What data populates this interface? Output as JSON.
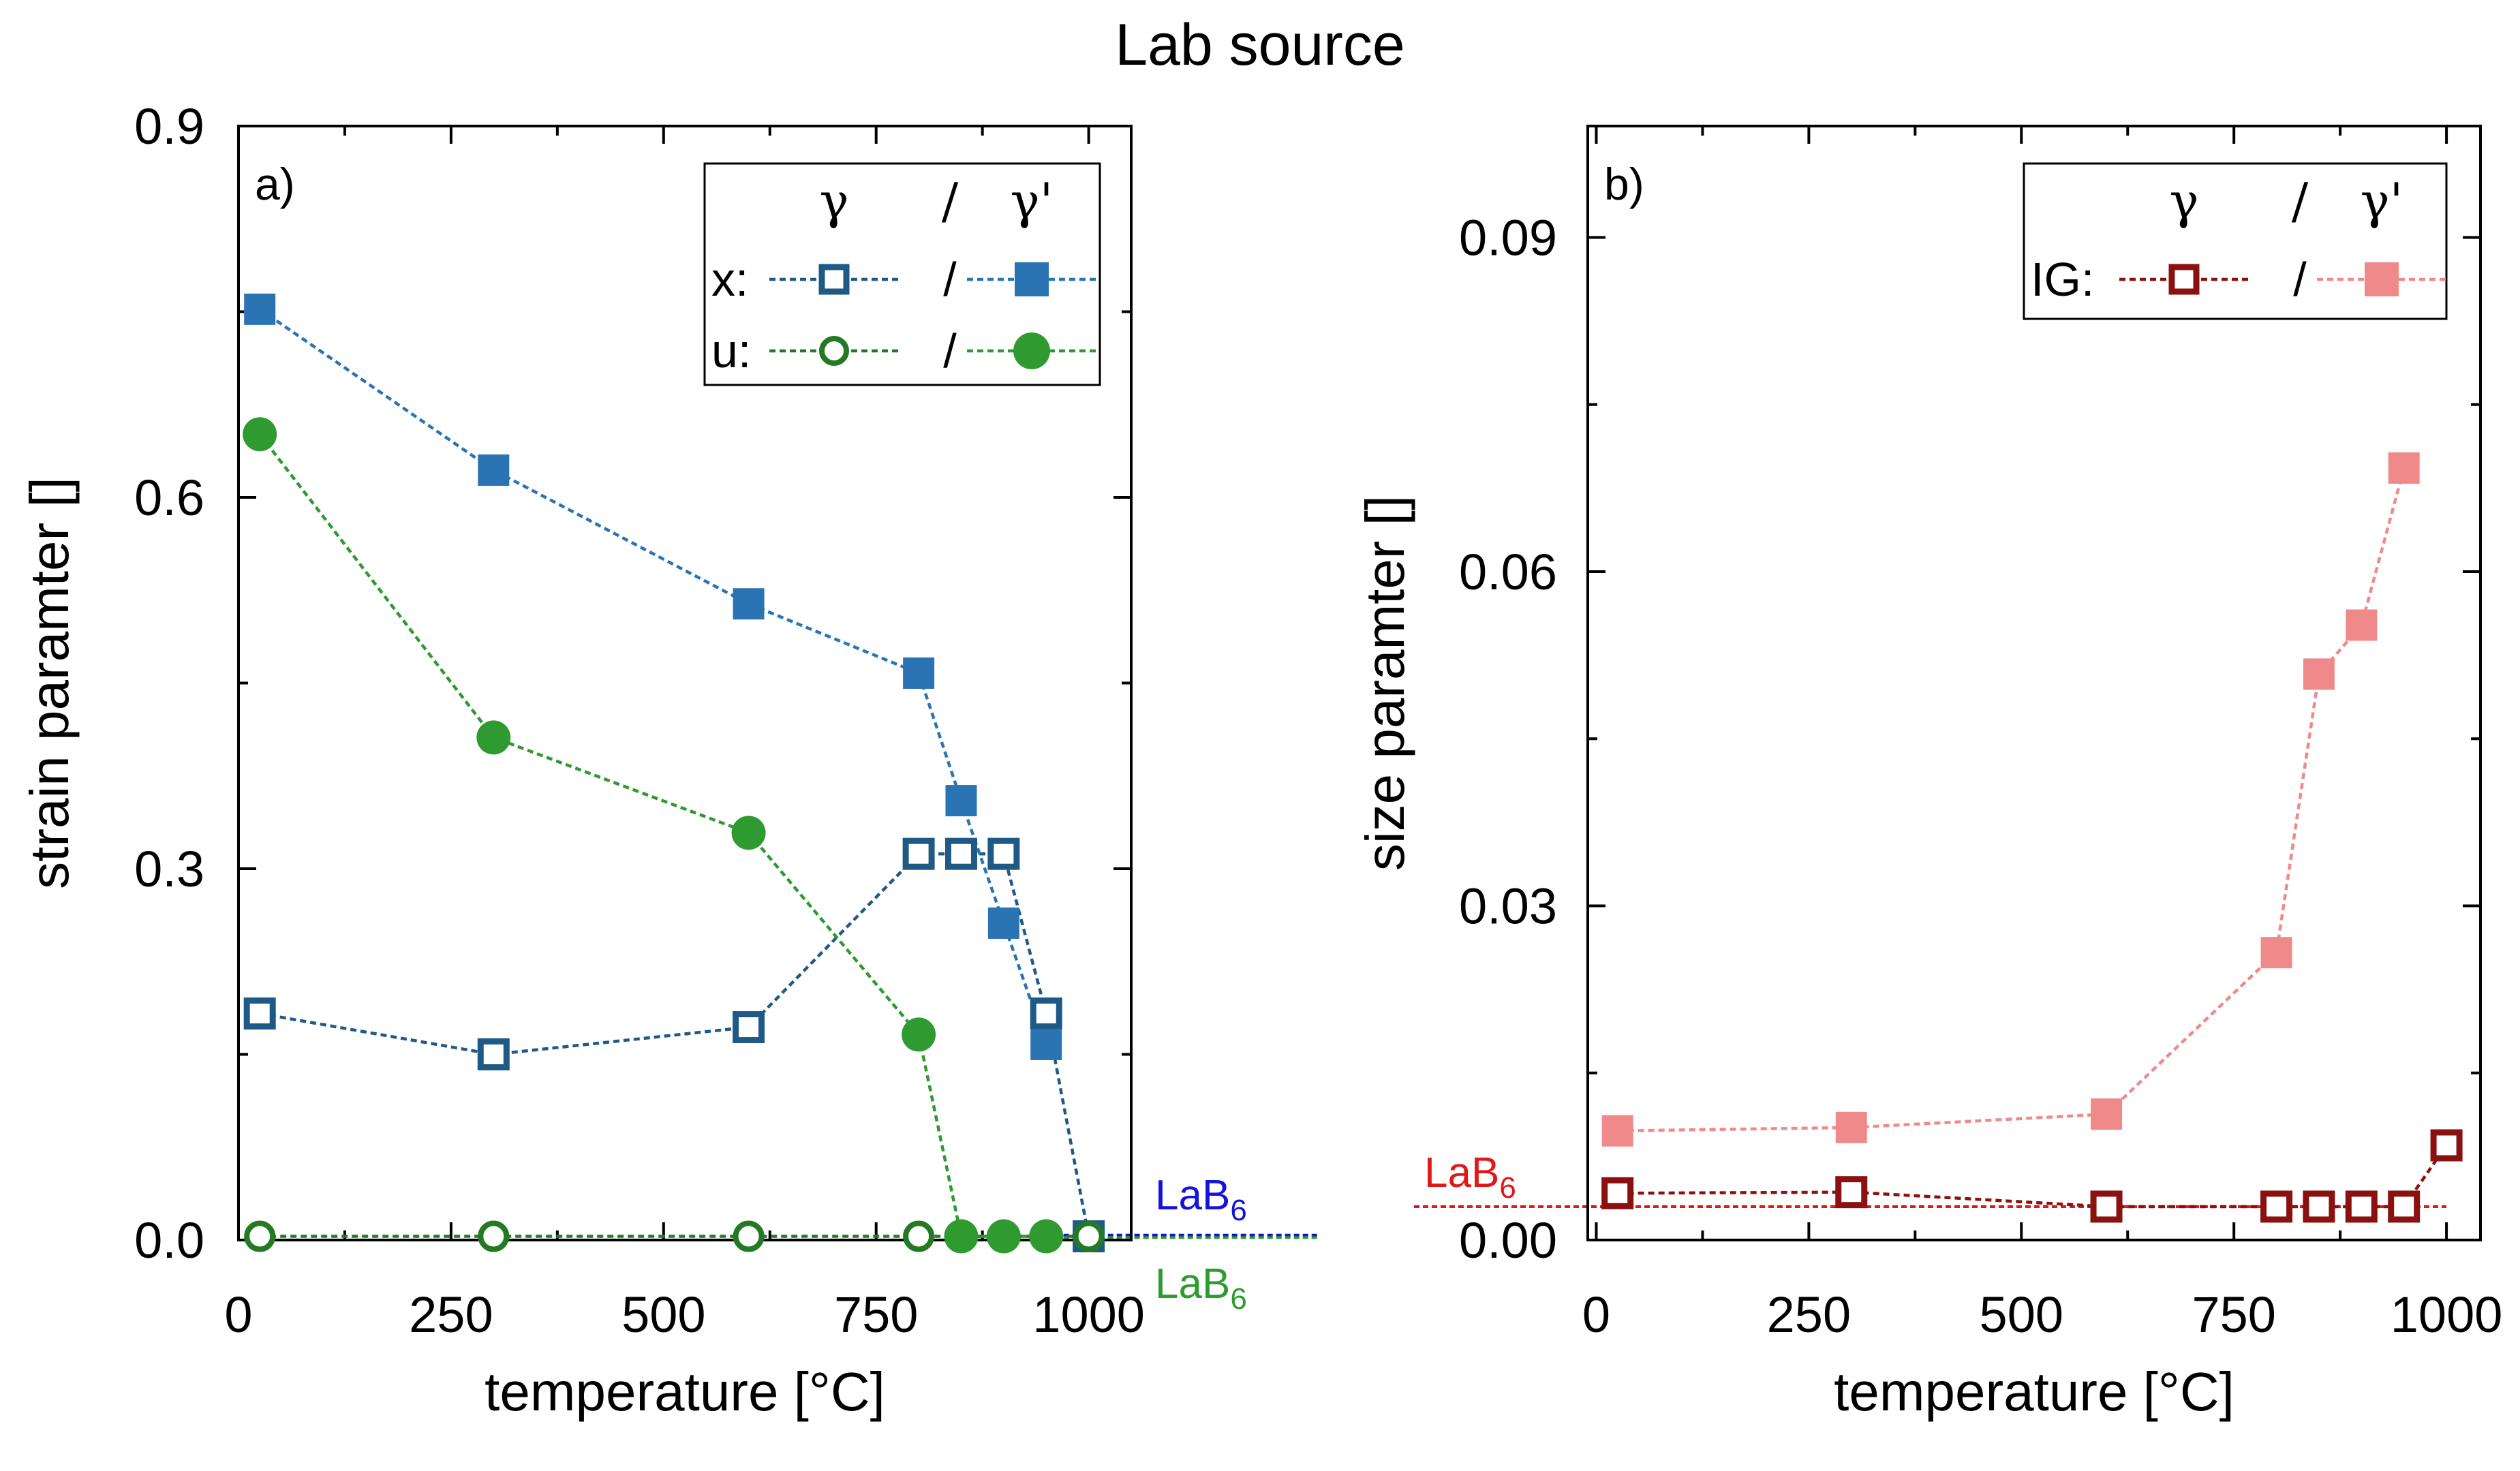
{
  "title": "Lab source",
  "colors": {
    "x_blue": "#2b74b3",
    "x_blue_dark": "#1f5a86",
    "u_green": "#2f9a2f",
    "u_green_dark": "#247a24",
    "ig_pink": "#f08a8a",
    "ig_dark": "#8b1010",
    "ref_blue": "#1414d8",
    "ref_red": "#e01818"
  },
  "chart_data": [
    {
      "panel": "a)",
      "type": "line",
      "xlabel": "temperature [°C]",
      "ylabel": "strain paramter []",
      "xlim": [
        0,
        1050
      ],
      "ylim": [
        0,
        0.9
      ],
      "xticks": [
        0,
        250,
        500,
        750,
        1000
      ],
      "xtick_labels": [
        "0",
        "250",
        "500",
        "750",
        "1000"
      ],
      "yticks": [
        0,
        0.3,
        0.6,
        0.9
      ],
      "ytick_labels": [
        "0.0",
        "0.3",
        "0.6",
        "0.9"
      ],
      "legend": {
        "position": "top-right",
        "header_gamma": "γ",
        "header_sep": "/",
        "header_gamma_prime": "γ'",
        "rows": [
          {
            "label": "x:",
            "sep": "/"
          },
          {
            "label": "u:",
            "sep": "/"
          }
        ]
      },
      "series": [
        {
          "name": "x γ",
          "marker": "square-open",
          "color": "x_blue_dark",
          "x": [
            25,
            300,
            600,
            800,
            850,
            900,
            950,
            1000
          ],
          "y": [
            0.183,
            0.15,
            0.172,
            0.312,
            0.312,
            0.312,
            0.183,
            0.003
          ]
        },
        {
          "name": "x γ'",
          "marker": "square-filled",
          "color": "x_blue",
          "x": [
            25,
            300,
            600,
            800,
            850,
            900,
            950
          ],
          "y": [
            0.752,
            0.622,
            0.514,
            0.458,
            0.355,
            0.256,
            0.158
          ]
        },
        {
          "name": "u γ",
          "marker": "circle-open",
          "color": "u_green_dark",
          "x": [
            25,
            300,
            600,
            800,
            1000
          ],
          "y": [
            0.003,
            0.003,
            0.003,
            0.003,
            0.003
          ]
        },
        {
          "name": "u γ'",
          "marker": "circle-filled",
          "color": "u_green",
          "x": [
            25,
            300,
            600,
            800,
            850,
            900,
            950
          ],
          "y": [
            0.651,
            0.406,
            0.329,
            0.166,
            0.003,
            0.003,
            0.003
          ]
        }
      ],
      "reference_lines": [
        {
          "label": "LaB",
          "subscript": "6",
          "color": "ref_blue",
          "y": 0.004,
          "label_side": "above"
        },
        {
          "label": "LaB",
          "subscript": "6",
          "color": "u_green",
          "y": 0.002,
          "label_side": "below"
        }
      ]
    },
    {
      "panel": "b)",
      "type": "line",
      "xlabel": "temperature [°C]",
      "ylabel": "size paramter []",
      "xlim": [
        -10,
        1040
      ],
      "ylim": [
        0,
        0.1
      ],
      "xticks": [
        0,
        250,
        500,
        750,
        1000
      ],
      "xtick_labels": [
        "0",
        "250",
        "500",
        "750",
        "1000"
      ],
      "yticks": [
        0,
        0.03,
        0.06,
        0.09
      ],
      "ytick_labels": [
        "0.00",
        "0.03",
        "0.06",
        "0.09"
      ],
      "legend": {
        "position": "top-right",
        "header_gamma": "γ",
        "header_sep": "/",
        "header_gamma_prime": "γ'",
        "rows": [
          {
            "label": "IG:",
            "sep": "/"
          }
        ]
      },
      "series": [
        {
          "name": "IG γ",
          "marker": "square-open",
          "color": "ig_dark",
          "x": [
            25,
            300,
            600,
            800,
            850,
            900,
            950,
            1000
          ],
          "y": [
            0.0042,
            0.0043,
            0.003,
            0.003,
            0.003,
            0.003,
            0.003,
            0.0085
          ]
        },
        {
          "name": "IG γ'",
          "marker": "square-filled",
          "color": "ig_pink",
          "x": [
            25,
            300,
            600,
            800,
            850,
            900,
            950
          ],
          "y": [
            0.0098,
            0.0101,
            0.0113,
            0.0258,
            0.0508,
            0.0552,
            0.0693
          ]
        }
      ],
      "reference_lines": [
        {
          "label": "LaB",
          "subscript": "6",
          "color": "ref_red",
          "y": 0.003,
          "label_side": "above-left"
        }
      ]
    }
  ]
}
